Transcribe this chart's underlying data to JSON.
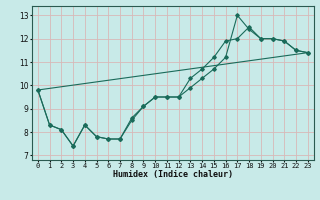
{
  "title": "",
  "xlabel": "Humidex (Indice chaleur)",
  "xlim": [
    -0.5,
    23.5
  ],
  "ylim": [
    6.8,
    13.4
  ],
  "yticks": [
    7,
    8,
    9,
    10,
    11,
    12,
    13
  ],
  "xticks": [
    0,
    1,
    2,
    3,
    4,
    5,
    6,
    7,
    8,
    9,
    10,
    11,
    12,
    13,
    14,
    15,
    16,
    17,
    18,
    19,
    20,
    21,
    22,
    23
  ],
  "bg_color": "#c8eae8",
  "grid_color": "#d8b8b8",
  "line_color": "#1a6b5a",
  "line1_x": [
    0,
    1,
    2,
    3,
    4,
    5,
    6,
    7,
    8,
    9,
    10,
    11,
    12,
    13,
    14,
    15,
    16,
    17,
    18,
    19,
    20,
    21,
    22,
    23
  ],
  "line1_y": [
    9.8,
    8.3,
    8.1,
    7.4,
    8.3,
    7.8,
    7.7,
    7.7,
    8.5,
    9.1,
    9.5,
    9.5,
    9.5,
    9.9,
    10.3,
    10.7,
    11.2,
    13.0,
    12.4,
    12.0,
    12.0,
    11.9,
    11.5,
    11.4
  ],
  "line2_x": [
    0,
    1,
    2,
    3,
    4,
    5,
    6,
    7,
    8,
    9,
    10,
    11,
    12,
    13,
    14,
    15,
    16,
    17,
    18,
    19,
    20,
    21,
    22,
    23
  ],
  "line2_y": [
    9.8,
    8.3,
    8.1,
    7.4,
    8.3,
    7.8,
    7.7,
    7.7,
    8.6,
    9.1,
    9.5,
    9.5,
    9.5,
    10.3,
    10.7,
    11.2,
    11.9,
    12.0,
    12.5,
    12.0,
    12.0,
    11.9,
    11.5,
    11.4
  ],
  "line3_x": [
    0,
    23
  ],
  "line3_y": [
    9.8,
    11.4
  ],
  "xlabel_fontsize": 6,
  "tick_fontsize": 5,
  "ylabel_fontsize": 6
}
